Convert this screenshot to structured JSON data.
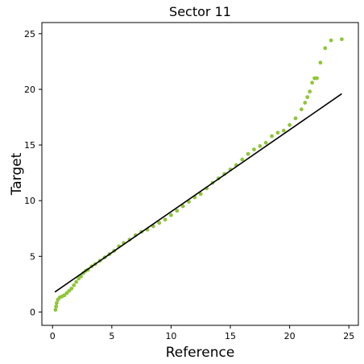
{
  "chart_data": {
    "type": "scatter",
    "title": "Sector 11",
    "xlabel": "Reference",
    "ylabel": "Target",
    "xlim": [
      -0.9,
      25.8
    ],
    "ylim": [
      -1.2,
      26.0
    ],
    "xticks": [
      0,
      5,
      10,
      15,
      20,
      25
    ],
    "yticks": [
      0,
      5,
      10,
      15,
      20,
      25
    ],
    "grid": false,
    "legend": "none",
    "colors": {
      "points": "#8fc637",
      "line": "#000000"
    },
    "fit_line": {
      "x": [
        0.2,
        24.4
      ],
      "y": [
        1.8,
        19.6
      ]
    },
    "points": {
      "x": [
        0.25,
        0.3,
        0.35,
        0.45,
        0.6,
        0.8,
        1.0,
        1.2,
        1.4,
        1.6,
        1.8,
        2.0,
        2.2,
        2.4,
        2.6,
        2.8,
        3.0,
        3.3,
        3.6,
        4.0,
        4.4,
        4.8,
        5.2,
        5.6,
        6.0,
        6.5,
        7.0,
        7.5,
        8.0,
        8.5,
        9.0,
        9.5,
        10.0,
        10.5,
        11.0,
        11.5,
        12.0,
        12.5,
        13.0,
        13.5,
        14.0,
        14.5,
        15.0,
        15.5,
        16.0,
        16.5,
        17.0,
        17.5,
        18.0,
        18.5,
        19.0,
        19.5,
        20.0,
        20.5,
        21.0,
        21.3,
        21.5,
        21.7,
        21.9,
        22.1,
        22.3,
        22.6,
        23.0,
        23.5,
        24.4
      ],
      "y": [
        0.2,
        0.5,
        0.8,
        1.1,
        1.3,
        1.4,
        1.5,
        1.7,
        1.9,
        2.1,
        2.4,
        2.7,
        3.0,
        3.2,
        3.5,
        3.7,
        3.8,
        4.1,
        4.3,
        4.6,
        4.9,
        5.2,
        5.5,
        5.9,
        6.2,
        6.5,
        6.9,
        7.2,
        7.4,
        7.7,
        8.0,
        8.3,
        8.7,
        9.1,
        9.5,
        9.9,
        10.3,
        10.6,
        11.1,
        11.6,
        12.0,
        12.4,
        12.8,
        13.2,
        13.7,
        14.2,
        14.6,
        14.9,
        15.2,
        15.8,
        16.1,
        16.3,
        16.8,
        17.4,
        18.2,
        18.8,
        19.3,
        19.8,
        20.6,
        21.0,
        21.0,
        22.4,
        23.7,
        24.4,
        24.5
      ]
    }
  }
}
